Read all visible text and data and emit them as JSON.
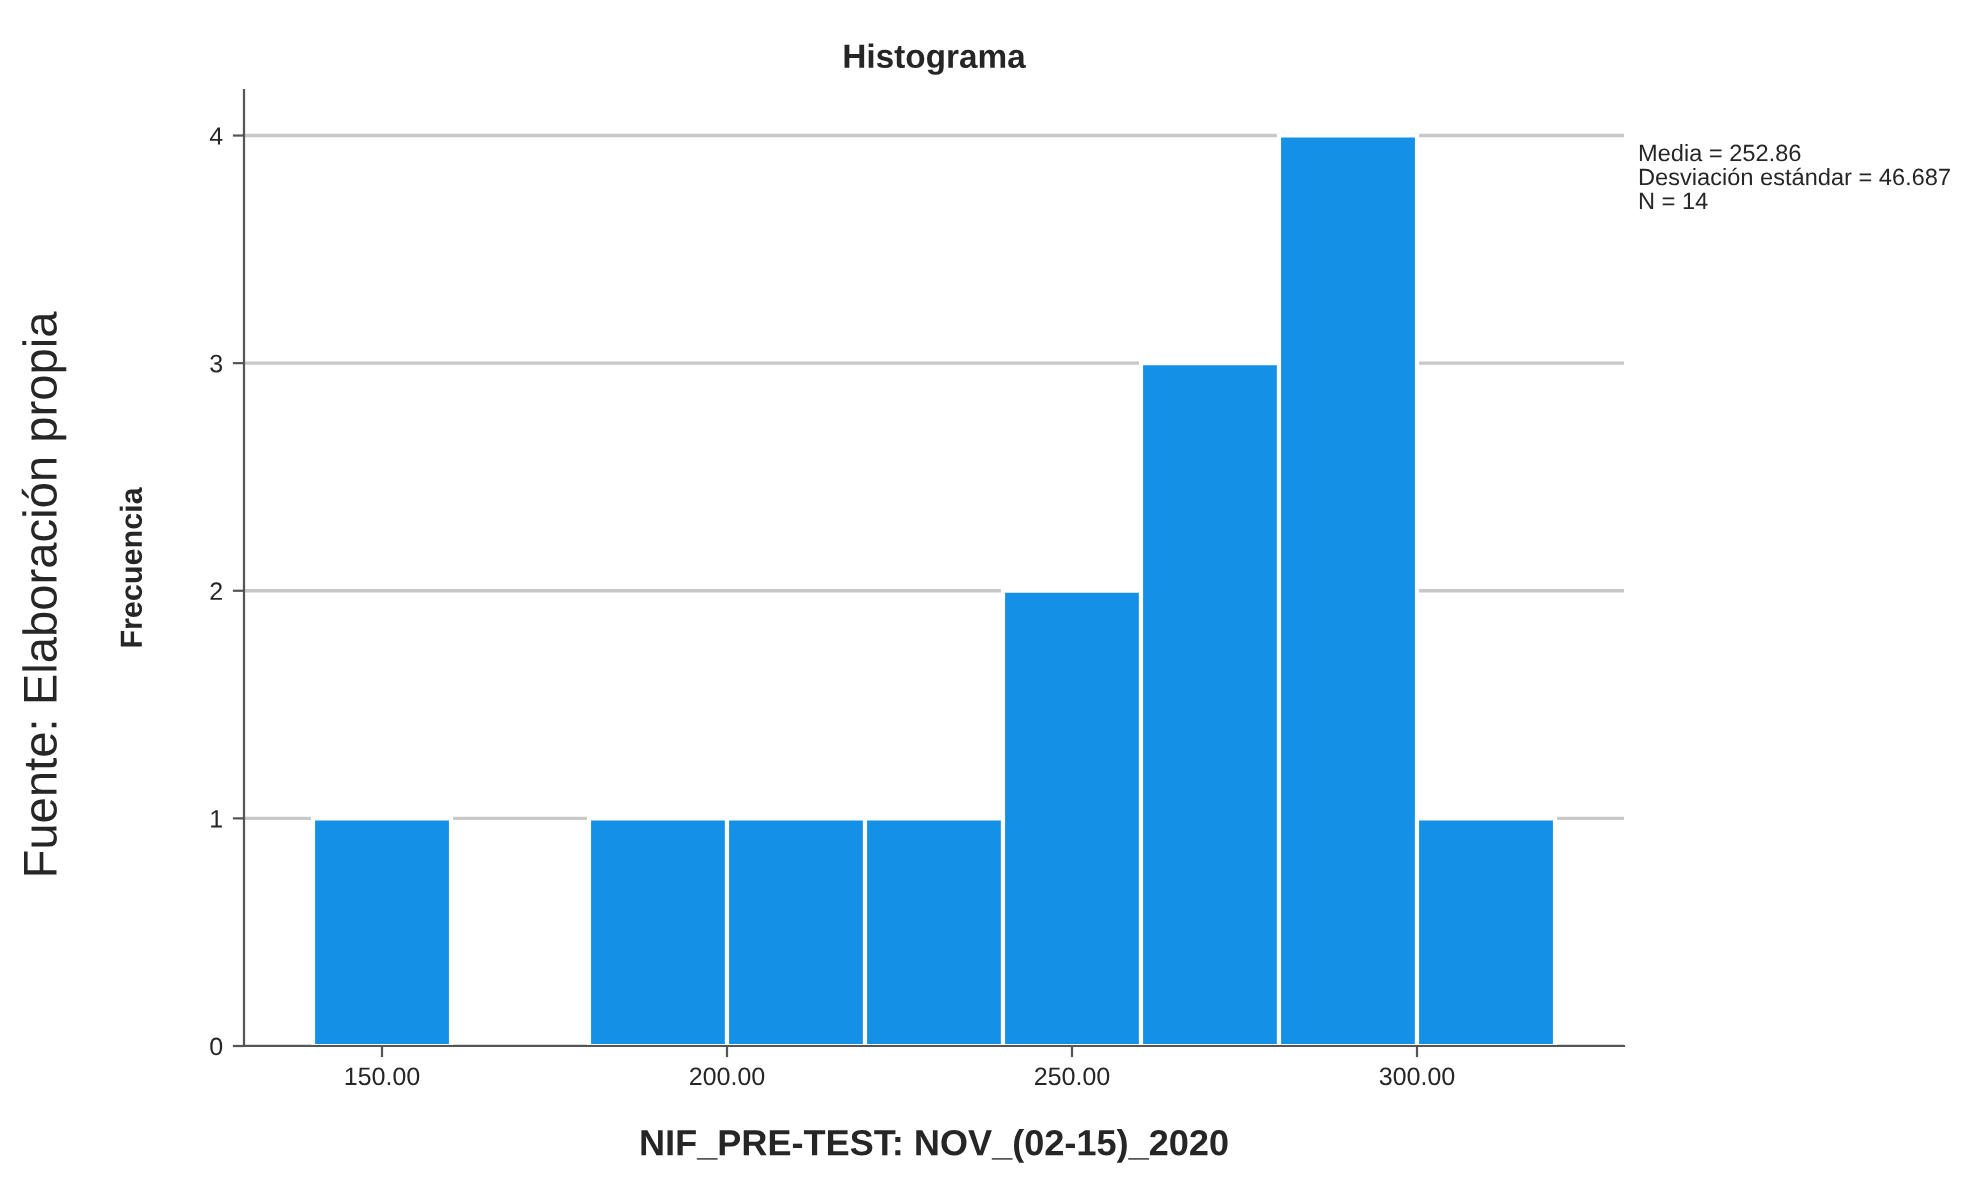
{
  "chart_data": {
    "type": "histogram",
    "title": "Histograma",
    "xlabel": "NIF_PRE-TEST: NOV_(02-15)_2020",
    "ylabel": "Frecuencia",
    "bins": [
      140,
      160,
      180,
      200,
      220,
      240,
      260,
      280,
      300,
      320
    ],
    "values": [
      1,
      0,
      1,
      1,
      1,
      2,
      3,
      4,
      1
    ],
    "color": "#1490e6",
    "xlim": [
      130,
      330
    ],
    "xticks": [
      {
        "value": 150,
        "label": "150.00"
      },
      {
        "value": 200,
        "label": "200.00"
      },
      {
        "value": 250,
        "label": "250.00"
      },
      {
        "value": 300,
        "label": "300.00"
      }
    ],
    "ylim": [
      0,
      4.2
    ],
    "yticks": [
      0,
      1,
      2,
      3,
      4
    ],
    "grid": "y",
    "annotations": [
      "Media = 252.86",
      "Desviación estándar = 46.687",
      "N = 14",
      "Fuente: Elaboración propia"
    ]
  }
}
